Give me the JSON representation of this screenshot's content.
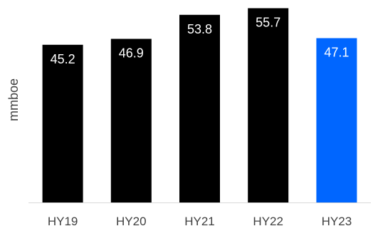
{
  "chart_data": {
    "type": "bar",
    "categories": [
      "HY19",
      "HY20",
      "HY21",
      "HY22",
      "HY23"
    ],
    "values": [
      45.2,
      46.9,
      53.8,
      55.7,
      47.1
    ],
    "value_labels": [
      "45.2",
      "46.9",
      "53.8",
      "55.7",
      "47.1"
    ],
    "title": "",
    "xlabel": "",
    "ylabel": "mmboe",
    "ylim": [
      0,
      56
    ],
    "grid": false,
    "legend": "none",
    "colors": {
      "default_bar": "#000000",
      "highlight_bar": "#0066FF",
      "data_label": "#FFFFFF",
      "baseline": "#D9D9D9",
      "text": "#404040"
    },
    "highlight_index": 4
  }
}
